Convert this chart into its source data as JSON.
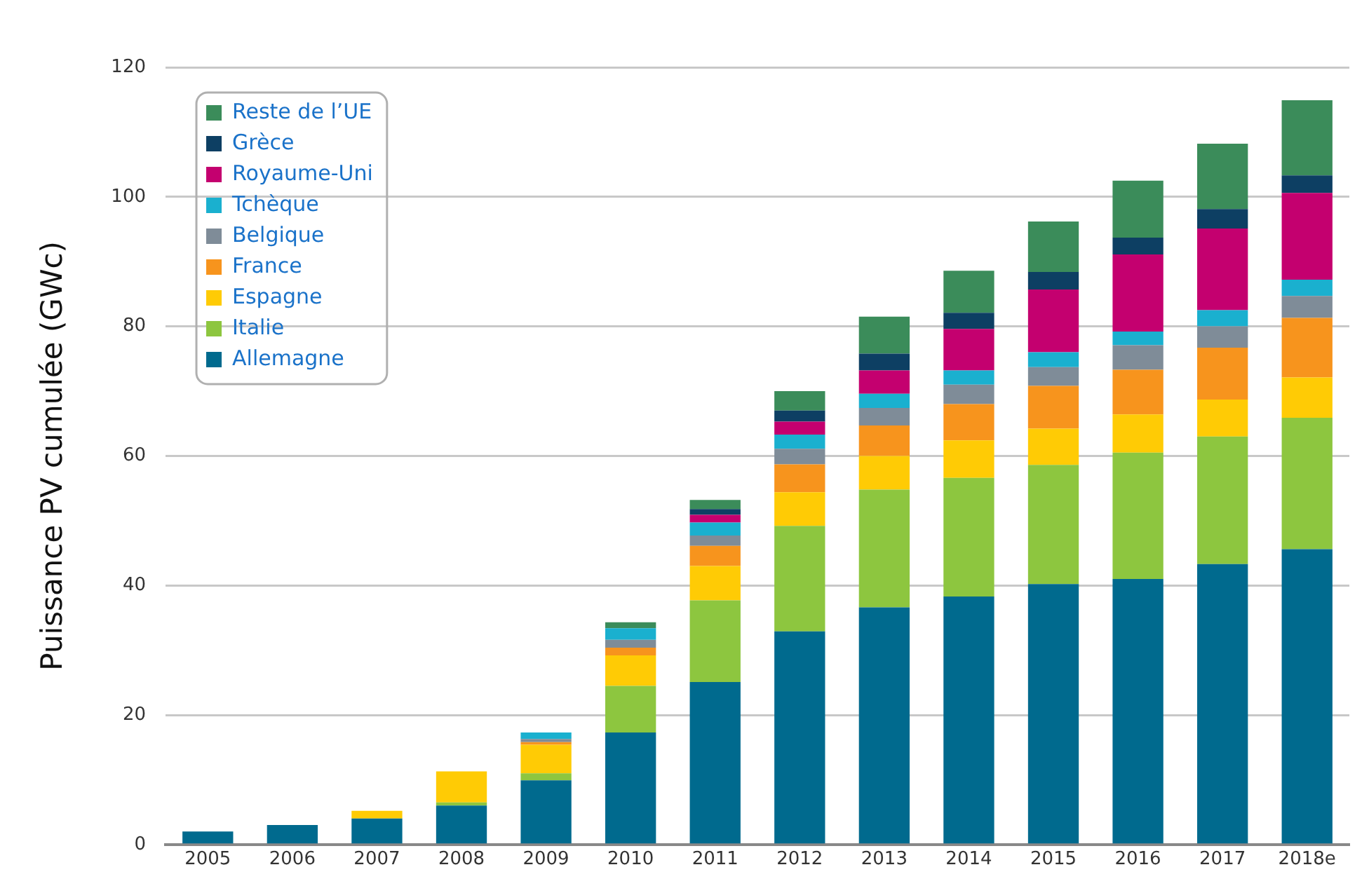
{
  "chart_data": {
    "type": "bar",
    "ylabel": "Puissance PV cumulée (GWc)",
    "categories": [
      "2005",
      "2006",
      "2007",
      "2008",
      "2009",
      "2010",
      "2011",
      "2012",
      "2013",
      "2014",
      "2015",
      "2016",
      "2017",
      "2018e"
    ],
    "stacked": true,
    "grid": "y",
    "legend": "top left",
    "ylim": [
      0,
      120
    ],
    "yticks": [
      0,
      20,
      40,
      60,
      80,
      100,
      120
    ],
    "series": [
      {
        "name": "Allemagne",
        "color": "#006a8e",
        "values": [
          2.0,
          3.0,
          4.0,
          6.0,
          9.9,
          17.3,
          25.1,
          32.9,
          36.6,
          38.3,
          40.2,
          41.0,
          43.3,
          45.6
        ]
      },
      {
        "name": "Italie",
        "color": "#8dc63f",
        "values": [
          null,
          null,
          null,
          0.5,
          1.1,
          7.2,
          12.6,
          16.3,
          18.2,
          18.3,
          18.4,
          19.5,
          19.7,
          20.3
        ]
      },
      {
        "name": "Espagne",
        "color": "#ffcb05",
        "values": [
          null,
          null,
          1.2,
          4.8,
          4.4,
          4.7,
          5.3,
          5.2,
          5.2,
          5.8,
          5.6,
          5.9,
          5.7,
          6.2
        ]
      },
      {
        "name": "France",
        "color": "#f7941d",
        "values": [
          null,
          null,
          null,
          null,
          0.4,
          1.2,
          3.1,
          4.3,
          4.7,
          5.6,
          6.6,
          6.9,
          8.0,
          9.2
        ]
      },
      {
        "name": "Belgique",
        "color": "#7f8c98",
        "values": [
          null,
          null,
          null,
          null,
          0.5,
          1.2,
          1.6,
          2.4,
          2.7,
          3.0,
          2.9,
          3.8,
          3.3,
          3.4
        ]
      },
      {
        "name": "Tchèque",
        "color": "#1ab0cf",
        "values": [
          null,
          null,
          null,
          null,
          1.0,
          1.8,
          2.0,
          2.2,
          2.2,
          2.2,
          2.3,
          2.1,
          2.5,
          2.5
        ]
      },
      {
        "name": "Royaume-Uni",
        "color": "#c4006f",
        "values": [
          null,
          null,
          null,
          null,
          null,
          null,
          1.2,
          2.0,
          3.6,
          6.4,
          9.7,
          11.9,
          12.6,
          13.4
        ]
      },
      {
        "name": "Grèce",
        "color": "#0d3f63",
        "values": [
          null,
          null,
          null,
          null,
          null,
          null,
          0.9,
          1.7,
          2.6,
          2.5,
          2.7,
          2.6,
          3.0,
          2.7
        ]
      },
      {
        "name": "Reste de l’UE",
        "color": "#3b8c5a",
        "values": [
          null,
          null,
          null,
          null,
          null,
          0.9,
          1.4,
          3.0,
          5.7,
          6.5,
          7.8,
          8.8,
          10.1,
          11.6
        ]
      }
    ]
  }
}
